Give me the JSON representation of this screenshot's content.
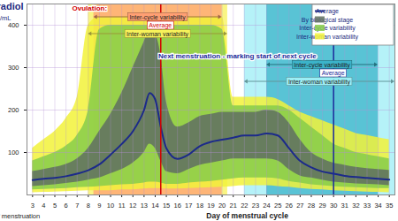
{
  "chart_data": {
    "type": "area",
    "title": "Estradiol",
    "y_label": "pg/mL",
    "x_label": "Day of menstrual cycle",
    "x_note": "beginning of menstruation",
    "xlim": [
      2.5,
      35.5
    ],
    "xticks": [
      3,
      4,
      5,
      6,
      7,
      8,
      9,
      10,
      11,
      12,
      13,
      14,
      15,
      16,
      17,
      18,
      19,
      20,
      21,
      22,
      23,
      24,
      25,
      26,
      27,
      28,
      29,
      30,
      31,
      32,
      33,
      34,
      35
    ],
    "ylim": [
      0,
      450
    ],
    "yticks": [
      100,
      200,
      300,
      400
    ],
    "grid": true,
    "legend": "top-right",
    "x": [
      3,
      4,
      5,
      6,
      7,
      8,
      9,
      10,
      11,
      12,
      13,
      13.5,
      14,
      14.5,
      15,
      16,
      17,
      18,
      19,
      20,
      21,
      22,
      23,
      24,
      25,
      26,
      27,
      28,
      29,
      30,
      31,
      32,
      33,
      34,
      35
    ],
    "series": [
      {
        "name": "Inter-woman variability",
        "type": "area",
        "color": "#f2f23a",
        "lower": [
          5,
          6,
          7,
          8,
          9,
          10,
          10,
          10,
          12,
          12,
          14,
          15,
          15,
          15,
          14,
          14,
          15,
          16,
          17,
          18,
          20,
          22,
          22,
          22,
          20,
          18,
          15,
          13,
          12,
          10,
          9,
          8,
          7,
          6,
          5
        ],
        "upper": [
          110,
          130,
          150,
          180,
          230,
          400,
          420,
          420,
          420,
          420,
          420,
          420,
          420,
          420,
          420,
          420,
          420,
          420,
          420,
          420,
          230,
          230,
          230,
          230,
          225,
          210,
          195,
          185,
          175,
          165,
          155,
          145,
          140,
          135,
          130
        ]
      },
      {
        "name": "Inter-cycle variability",
        "type": "area",
        "color": "#86cc4a",
        "lower": [
          12,
          13,
          14,
          15,
          17,
          18,
          20,
          22,
          24,
          25,
          28,
          30,
          30,
          28,
          25,
          25,
          28,
          30,
          32,
          35,
          38,
          40,
          40,
          40,
          38,
          32,
          28,
          24,
          22,
          20,
          18,
          17,
          16,
          15,
          15
        ],
        "upper": [
          80,
          90,
          100,
          115,
          140,
          200,
          390,
          400,
          400,
          400,
          400,
          400,
          400,
          400,
          400,
          400,
          400,
          400,
          400,
          390,
          210,
          210,
          210,
          210,
          210,
          200,
          180,
          160,
          140,
          120,
          110,
          100,
          95,
          90,
          85
        ]
      },
      {
        "name": "By biological stage",
        "type": "area",
        "color": "#5f6e62",
        "lower": [
          20,
          22,
          24,
          27,
          30,
          35,
          40,
          50,
          60,
          75,
          100,
          120,
          110,
          80,
          55,
          50,
          60,
          70,
          75,
          80,
          85,
          85,
          85,
          85,
          80,
          60,
          45,
          40,
          35,
          30,
          28,
          26,
          25,
          24,
          22
        ],
        "upper": [
          55,
          60,
          65,
          72,
          85,
          110,
          150,
          190,
          240,
          300,
          360,
          390,
          380,
          330,
          220,
          160,
          170,
          185,
          190,
          195,
          195,
          195,
          195,
          200,
          195,
          170,
          130,
          100,
          85,
          75,
          70,
          65,
          62,
          60,
          58
        ]
      },
      {
        "name": "Average",
        "type": "line",
        "color": "#1c2a8a",
        "values": [
          35,
          38,
          40,
          44,
          50,
          58,
          72,
          95,
          120,
          150,
          200,
          240,
          225,
          160,
          110,
          85,
          95,
          115,
          125,
          130,
          135,
          140,
          140,
          145,
          140,
          110,
          80,
          65,
          55,
          50,
          45,
          42,
          40,
          38,
          36
        ]
      }
    ],
    "events": [
      {
        "title": "Ovulation:",
        "average": {
          "label": "Average",
          "value": 14.5,
          "color": "#d40000"
        },
        "inter_cycle": {
          "label": "Inter-cycle variability",
          "range": [
            8.5,
            20
          ],
          "color": "#ff9f73"
        },
        "inter_woman": {
          "label": "Inter-woman variability",
          "range": [
            8,
            20.5
          ],
          "color": "#f7f25a"
        }
      },
      {
        "title": "Next menstruation - marking start of next cycle",
        "average": {
          "label": "Average",
          "value": 30,
          "color": "#1a2a99"
        },
        "inter_cycle": {
          "label": "Inter-cycle variability",
          "range": [
            24,
            34
          ],
          "color": "#3bb3c9"
        },
        "inter_woman": {
          "label": "Inter-woman variability",
          "range": [
            22,
            36
          ],
          "color": "#9ceef5"
        }
      }
    ]
  }
}
